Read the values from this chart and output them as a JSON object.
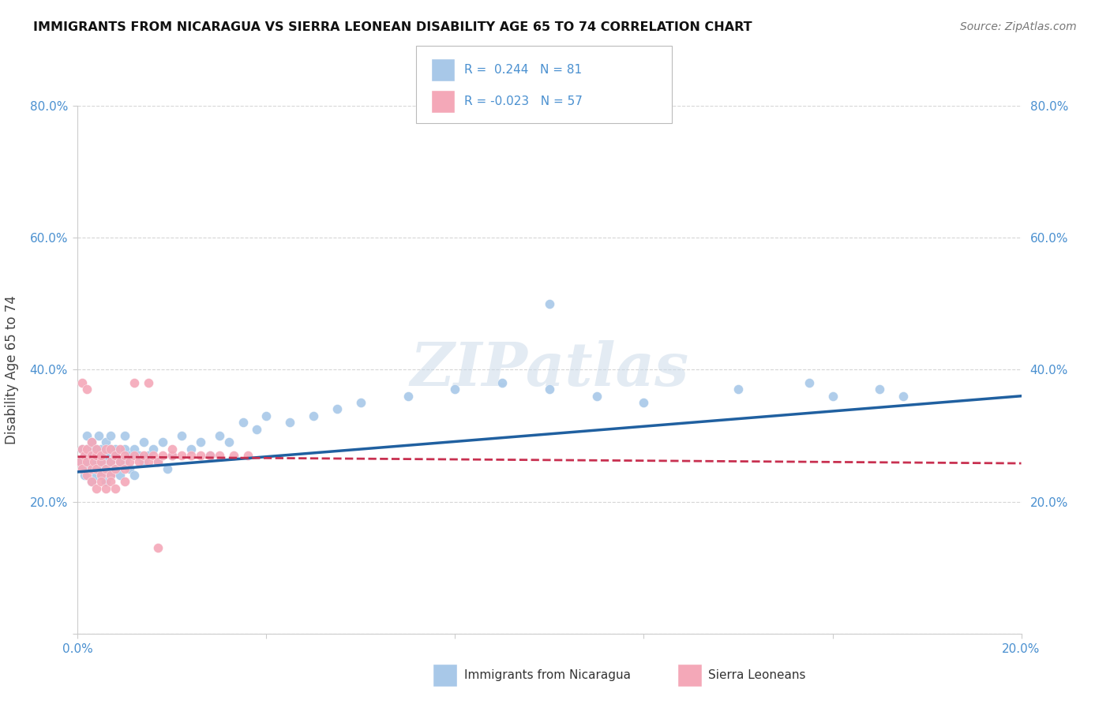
{
  "title": "IMMIGRANTS FROM NICARAGUA VS SIERRA LEONEAN DISABILITY AGE 65 TO 74 CORRELATION CHART",
  "source": "Source: ZipAtlas.com",
  "ylabel": "Disability Age 65 to 74",
  "x_min": 0.0,
  "x_max": 0.2,
  "y_min": 0.0,
  "y_max": 0.8,
  "legend_r1": "R =  0.244",
  "legend_n1": "N = 81",
  "legend_r2": "R = -0.023",
  "legend_n2": "N = 57",
  "blue_color": "#a8c8e8",
  "pink_color": "#f4a8b8",
  "blue_line_color": "#2060a0",
  "pink_line_color": "#c83050",
  "watermark_text": "ZIPatlas",
  "blue_scatter_x": [
    0.0005,
    0.001,
    0.001,
    0.0015,
    0.0015,
    0.002,
    0.002,
    0.002,
    0.0025,
    0.0025,
    0.003,
    0.003,
    0.003,
    0.003,
    0.0035,
    0.0035,
    0.004,
    0.004,
    0.004,
    0.004,
    0.004,
    0.0045,
    0.005,
    0.005,
    0.005,
    0.005,
    0.0055,
    0.006,
    0.006,
    0.006,
    0.006,
    0.007,
    0.007,
    0.007,
    0.007,
    0.008,
    0.008,
    0.008,
    0.009,
    0.009,
    0.01,
    0.01,
    0.01,
    0.011,
    0.011,
    0.012,
    0.012,
    0.013,
    0.014,
    0.014,
    0.015,
    0.016,
    0.017,
    0.018,
    0.019,
    0.02,
    0.022,
    0.024,
    0.026,
    0.028,
    0.03,
    0.032,
    0.035,
    0.038,
    0.04,
    0.045,
    0.05,
    0.055,
    0.06,
    0.07,
    0.08,
    0.09,
    0.1,
    0.11,
    0.12,
    0.14,
    0.155,
    0.16,
    0.17,
    0.175,
    0.1
  ],
  "blue_scatter_y": [
    0.26,
    0.28,
    0.25,
    0.27,
    0.24,
    0.26,
    0.28,
    0.3,
    0.25,
    0.27,
    0.25,
    0.27,
    0.23,
    0.29,
    0.26,
    0.28,
    0.24,
    0.26,
    0.28,
    0.25,
    0.27,
    0.3,
    0.25,
    0.27,
    0.24,
    0.28,
    0.26,
    0.25,
    0.27,
    0.23,
    0.29,
    0.26,
    0.24,
    0.28,
    0.3,
    0.25,
    0.27,
    0.28,
    0.26,
    0.24,
    0.28,
    0.26,
    0.3,
    0.25,
    0.27,
    0.28,
    0.24,
    0.27,
    0.26,
    0.29,
    0.27,
    0.28,
    0.26,
    0.29,
    0.25,
    0.27,
    0.3,
    0.28,
    0.29,
    0.27,
    0.3,
    0.29,
    0.32,
    0.31,
    0.33,
    0.32,
    0.33,
    0.34,
    0.35,
    0.36,
    0.37,
    0.38,
    0.37,
    0.36,
    0.35,
    0.37,
    0.38,
    0.36,
    0.37,
    0.36,
    0.5
  ],
  "pink_scatter_x": [
    0.0005,
    0.001,
    0.001,
    0.0015,
    0.002,
    0.002,
    0.002,
    0.003,
    0.003,
    0.003,
    0.0035,
    0.004,
    0.004,
    0.004,
    0.005,
    0.005,
    0.005,
    0.006,
    0.006,
    0.007,
    0.007,
    0.007,
    0.008,
    0.008,
    0.009,
    0.009,
    0.01,
    0.01,
    0.011,
    0.012,
    0.013,
    0.014,
    0.015,
    0.016,
    0.017,
    0.018,
    0.02,
    0.022,
    0.024,
    0.026,
    0.028,
    0.03,
    0.033,
    0.036,
    0.001,
    0.002,
    0.003,
    0.004,
    0.005,
    0.006,
    0.007,
    0.008,
    0.01,
    0.012,
    0.015,
    0.017,
    0.02
  ],
  "pink_scatter_y": [
    0.26,
    0.25,
    0.28,
    0.27,
    0.24,
    0.26,
    0.28,
    0.25,
    0.27,
    0.29,
    0.26,
    0.25,
    0.27,
    0.28,
    0.26,
    0.24,
    0.27,
    0.25,
    0.28,
    0.26,
    0.24,
    0.28,
    0.27,
    0.25,
    0.26,
    0.28,
    0.25,
    0.27,
    0.26,
    0.27,
    0.26,
    0.27,
    0.26,
    0.27,
    0.26,
    0.27,
    0.27,
    0.27,
    0.27,
    0.27,
    0.27,
    0.27,
    0.27,
    0.27,
    0.38,
    0.37,
    0.23,
    0.22,
    0.23,
    0.22,
    0.23,
    0.22,
    0.23,
    0.38,
    0.38,
    0.13,
    0.28
  ],
  "blue_line_x": [
    0.0,
    0.2
  ],
  "blue_line_y": [
    0.245,
    0.36
  ],
  "pink_line_x": [
    0.0,
    0.2
  ],
  "pink_line_y": [
    0.268,
    0.258
  ],
  "background_color": "#ffffff",
  "grid_color": "#cccccc",
  "tick_color": "#4a90d0",
  "spine_color": "#cccccc"
}
